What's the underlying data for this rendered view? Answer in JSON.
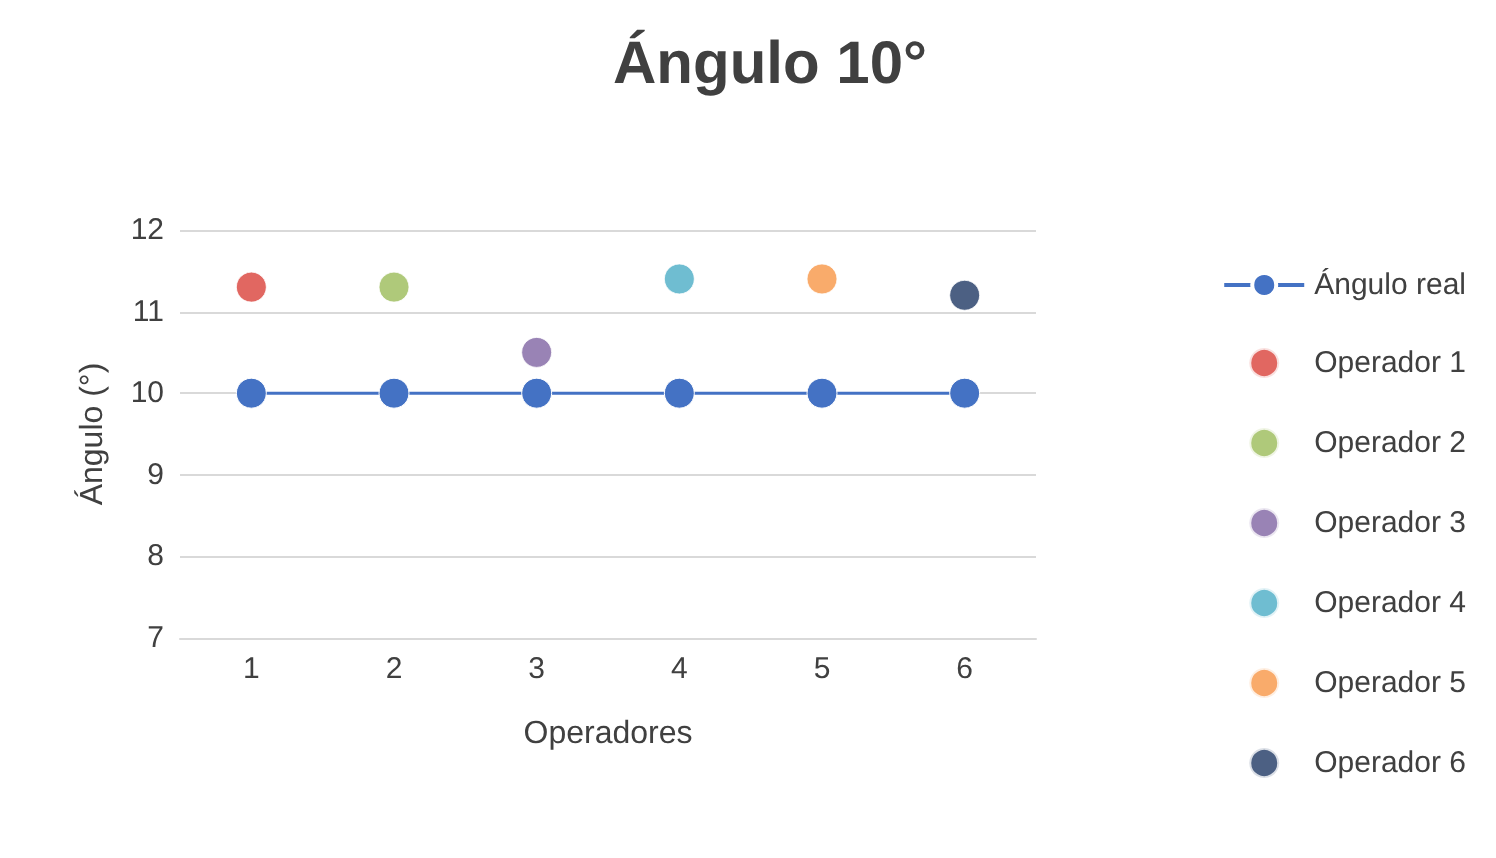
{
  "chart_data": {
    "type": "line",
    "title": "Ángulo 10°",
    "xlabel": "Operadores",
    "ylabel": "Ángulo (°)",
    "categories": [
      "1",
      "2",
      "3",
      "4",
      "5",
      "6"
    ],
    "series": [
      {
        "name": "Ángulo real",
        "color": "#4472c4",
        "values": [
          10,
          10,
          10,
          10,
          10,
          10
        ]
      },
      {
        "name": "Operador 1",
        "type": "scatter",
        "color": "#d9413a",
        "x": [
          "1"
        ],
        "values": [
          11.3
        ]
      },
      {
        "name": "Operador 2",
        "type": "scatter",
        "color": "#9bbb59",
        "x": [
          "2"
        ],
        "values": [
          11.3
        ]
      },
      {
        "name": "Operador 3",
        "type": "scatter",
        "color": "#8064a2",
        "x": [
          "3"
        ],
        "values": [
          10.5
        ]
      },
      {
        "name": "Operador 4",
        "type": "scatter",
        "color": "#4bacc6",
        "x": [
          "4"
        ],
        "values": [
          11.4
        ]
      },
      {
        "name": "Operador 5",
        "type": "scatter",
        "color": "#f79646",
        "x": [
          "5"
        ],
        "values": [
          11.4
        ]
      },
      {
        "name": "Operador 6",
        "type": "scatter",
        "color": "#1f3864",
        "x": [
          "6"
        ],
        "values": [
          11.2
        ]
      }
    ],
    "ylim": [
      7,
      12
    ],
    "yticks": [
      7,
      8,
      9,
      10,
      11,
      12
    ],
    "grid": "y",
    "legend": "right",
    "marker": "circle",
    "line_style": "solid"
  }
}
